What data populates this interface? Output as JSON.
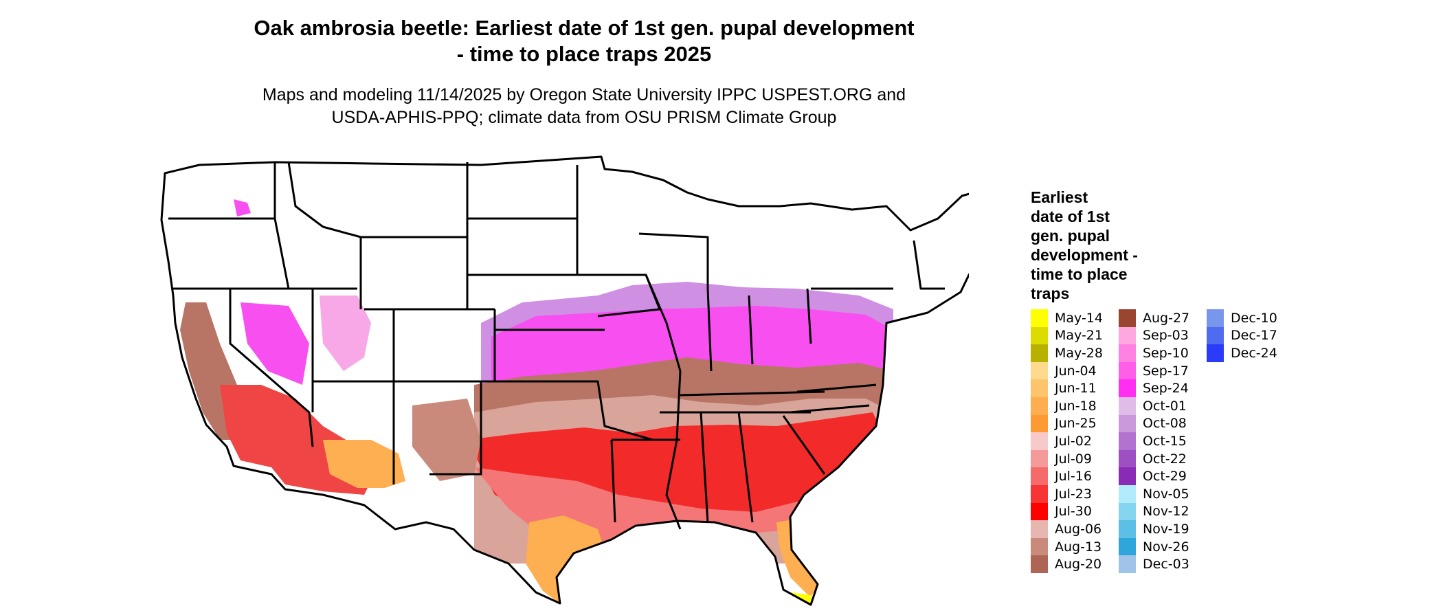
{
  "title": {
    "line1": "Oak ambrosia beetle: Earliest date of 1st gen. pupal development",
    "line2": "- time to place traps 2025"
  },
  "subtitle": {
    "line1": "Maps and modeling 11/14/2025 by Oregon State University IPPC USPEST.ORG and",
    "line2": "USDA-APHIS-PPQ; climate data from OSU PRISM Climate Group"
  },
  "legend": {
    "title_lines": [
      "Earliest",
      "date of 1st",
      "gen. pupal",
      "development -",
      "time to place",
      "traps"
    ],
    "columns": [
      [
        {
          "label": "May-14",
          "color": "#ffff00"
        },
        {
          "label": "May-21",
          "color": "#dcdc00"
        },
        {
          "label": "May-28",
          "color": "#b9b100"
        },
        {
          "label": "Jun-04",
          "color": "#fed98e"
        },
        {
          "label": "Jun-11",
          "color": "#fec46b"
        },
        {
          "label": "Jun-18",
          "color": "#feae50"
        },
        {
          "label": "Jun-25",
          "color": "#fe9a34"
        },
        {
          "label": "Jul-02",
          "color": "#f7c9c9"
        },
        {
          "label": "Jul-09",
          "color": "#f59a9a"
        },
        {
          "label": "Jul-16",
          "color": "#f56b6b"
        },
        {
          "label": "Jul-23",
          "color": "#f73535"
        },
        {
          "label": "Jul-30",
          "color": "#ff0000"
        },
        {
          "label": "Aug-06",
          "color": "#e8b6b0"
        },
        {
          "label": "Aug-13",
          "color": "#c98a7c"
        },
        {
          "label": "Aug-20",
          "color": "#ad6555"
        }
      ],
      [
        {
          "label": "Aug-27",
          "color": "#9a4530"
        },
        {
          "label": "Sep-03",
          "color": "#ffa8e0"
        },
        {
          "label": "Sep-10",
          "color": "#ff82e2"
        },
        {
          "label": "Sep-17",
          "color": "#ff5ee8"
        },
        {
          "label": "Sep-24",
          "color": "#ff2ef0"
        },
        {
          "label": "Oct-01",
          "color": "#e0bde8"
        },
        {
          "label": "Oct-08",
          "color": "#c999dc"
        },
        {
          "label": "Oct-15",
          "color": "#b273d0"
        },
        {
          "label": "Oct-22",
          "color": "#9e4fc3"
        },
        {
          "label": "Oct-29",
          "color": "#8a2bb5"
        },
        {
          "label": "Nov-05",
          "color": "#b2ecfc"
        },
        {
          "label": "Nov-12",
          "color": "#85d4f0"
        },
        {
          "label": "Nov-19",
          "color": "#5cbfe6"
        },
        {
          "label": "Nov-26",
          "color": "#2ea6dc"
        },
        {
          "label": "Dec-03",
          "color": "#a0c3ea"
        }
      ],
      [
        {
          "label": "Dec-10",
          "color": "#7896ec"
        },
        {
          "label": "Dec-17",
          "color": "#4f6bf0"
        },
        {
          "label": "Dec-24",
          "color": "#2a3cfa"
        }
      ]
    ]
  }
}
